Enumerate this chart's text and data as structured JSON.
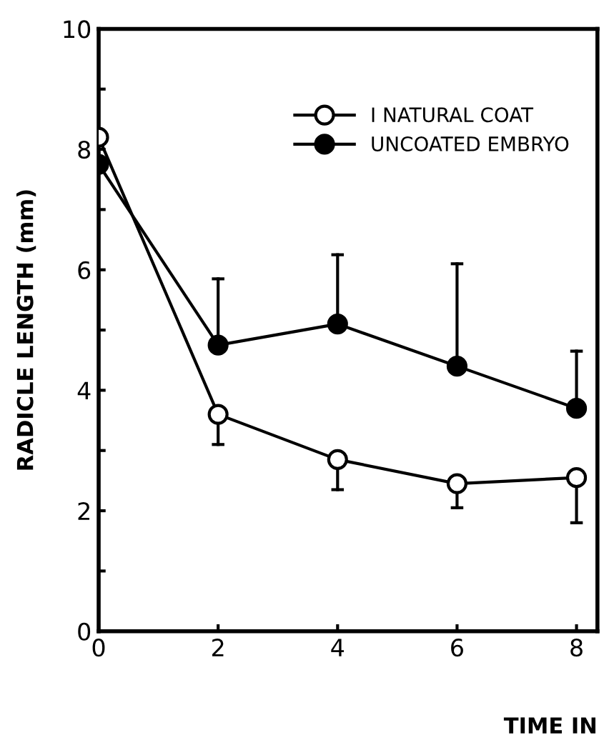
{
  "chart_data": {
    "type": "line",
    "xlabel": "TIME IN",
    "ylabel": "RADICLE LENGTH (mm)",
    "x": [
      0,
      2,
      4,
      6,
      8
    ],
    "series": [
      {
        "name": "I NATURAL COAT",
        "color": "#000000",
        "marker": "circle",
        "values": [
          8.2,
          3.6,
          2.85,
          2.45,
          2.55
        ],
        "errors": [
          null,
          [
            3.1,
            3.6
          ],
          [
            2.35,
            2.85
          ],
          [
            2.05,
            2.45
          ],
          [
            1.8,
            2.55
          ]
        ]
      },
      {
        "name": "UNCOATED EMBRYO",
        "color": "#000000",
        "marker": "circle",
        "values": [
          7.75,
          4.75,
          5.1,
          4.4,
          3.7
        ],
        "errors": [
          null,
          [
            4.75,
            5.85
          ],
          [
            5.1,
            6.25
          ],
          [
            4.4,
            6.1
          ],
          [
            3.7,
            4.65
          ]
        ]
      }
    ],
    "xlim": [
      0,
      8.35
    ],
    "ylim": [
      0,
      10
    ],
    "xticks": [
      0,
      2,
      4,
      6,
      8
    ],
    "yticks": [
      0,
      {
        "value": 1,
        "label": null
      },
      2,
      {
        "value": 3,
        "label": null
      },
      4,
      {
        "value": 5,
        "label": null
      },
      6,
      {
        "value": 7,
        "label": null
      },
      8,
      {
        "value": 9,
        "label": null
      },
      10
    ],
    "grid": false,
    "legend": "top right",
    "line_style": "solid"
  }
}
